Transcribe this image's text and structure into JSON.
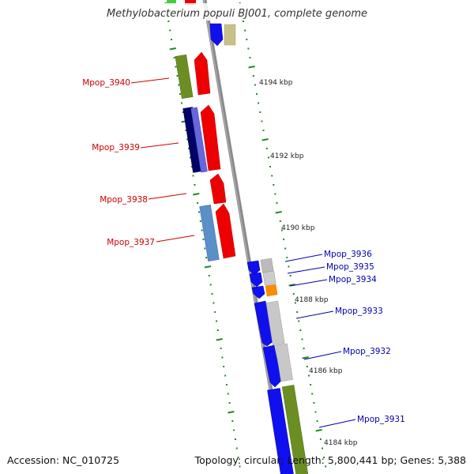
{
  "title": "Methylobacterium populi BJ001, complete genome",
  "footer": {
    "accession": "Accession: NC_010725",
    "summary": "Topology: circular; Length: 5,800,441 bp; Genes: 5,388"
  },
  "colors": {
    "reverse_label": "#cc0000",
    "forward_label": "#0000aa",
    "tick": "#228b22",
    "backbone": "#7a7a7a"
  },
  "kbp_labels": [
    {
      "text": "4194 kbp",
      "kbp": 4194
    },
    {
      "text": "4192 kbp",
      "kbp": 4192
    },
    {
      "text": "4190 kbp",
      "kbp": 4190
    },
    {
      "text": "4188 kbp",
      "kbp": 4188
    },
    {
      "text": "4186 kbp",
      "kbp": 4186
    },
    {
      "text": "4184 kbp",
      "kbp": 4184
    }
  ],
  "gene_labels": [
    {
      "text": "Mpop_3940",
      "strand": "reverse"
    },
    {
      "text": "Mpop_3939",
      "strand": "reverse"
    },
    {
      "text": "Mpop_3938",
      "strand": "reverse"
    },
    {
      "text": "Mpop_3937",
      "strand": "reverse"
    },
    {
      "text": "Mpop_3936",
      "strand": "forward"
    },
    {
      "text": "Mpop_3935",
      "strand": "forward"
    },
    {
      "text": "Mpop_3934",
      "strand": "forward"
    },
    {
      "text": "Mpop_3933",
      "strand": "forward"
    },
    {
      "text": "Mpop_3932",
      "strand": "forward"
    },
    {
      "text": "Mpop_3931",
      "strand": "forward"
    }
  ]
}
